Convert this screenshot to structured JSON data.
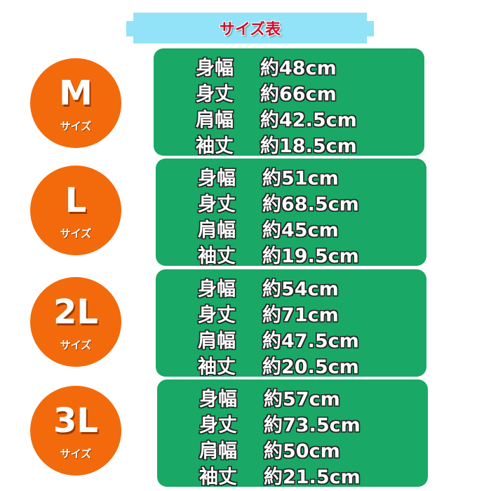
{
  "title": "サイズ表",
  "colors": {
    "banner": "#92e3f7",
    "title": "#c8102e",
    "card": "#19a865",
    "circle": "#f26a0c"
  },
  "sizes": [
    {
      "size": "M",
      "sub": "サイズ",
      "rows": [
        {
          "label": "身幅",
          "value": "約48cm"
        },
        {
          "label": "身丈",
          "value": "約66cm"
        },
        {
          "label": "肩幅",
          "value": "約42.5cm"
        },
        {
          "label": "袖丈",
          "value": "約18.5cm"
        }
      ]
    },
    {
      "size": "L",
      "sub": "サイズ",
      "rows": [
        {
          "label": "身幅",
          "value": "約51cm"
        },
        {
          "label": "身丈",
          "value": "約68.5cm"
        },
        {
          "label": "肩幅",
          "value": "約45cm"
        },
        {
          "label": "袖丈",
          "value": "約19.5cm"
        }
      ]
    },
    {
      "size": "2L",
      "sub": "サイズ",
      "rows": [
        {
          "label": "身幅",
          "value": "約54cm"
        },
        {
          "label": "身丈",
          "value": "約71cm"
        },
        {
          "label": "肩幅",
          "value": "約47.5cm"
        },
        {
          "label": "袖丈",
          "value": "約20.5cm"
        }
      ]
    },
    {
      "size": "3L",
      "sub": "サイズ",
      "rows": [
        {
          "label": "身幅",
          "value": "約57cm"
        },
        {
          "label": "身丈",
          "value": "約73.5cm"
        },
        {
          "label": "肩幅",
          "value": "約50cm"
        },
        {
          "label": "袖丈",
          "value": "約21.5cm"
        }
      ]
    }
  ]
}
